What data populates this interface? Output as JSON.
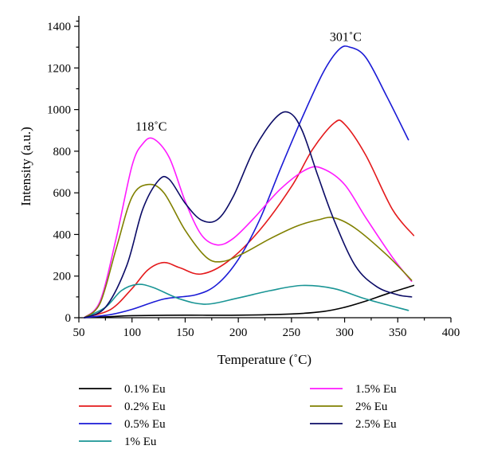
{
  "chart_data": {
    "type": "line",
    "xlabel": "Temperature (˚C)",
    "ylabel": "Intensity (a.u.)",
    "xlim": [
      50,
      400
    ],
    "ylim": [
      0,
      1450
    ],
    "xticks": [
      50,
      100,
      150,
      200,
      250,
      300,
      350,
      400
    ],
    "yticks": [
      0,
      200,
      400,
      600,
      800,
      1000,
      1200,
      1400
    ],
    "grid": false,
    "legend_position": "bottom",
    "annotations": [
      {
        "text": "118˚C",
        "x": 118,
        "y": 900
      },
      {
        "text": "301˚C",
        "x": 301,
        "y": 1330
      }
    ],
    "series": [
      {
        "name": "0.1% Eu",
        "color": "#000000",
        "x": [
          55,
          80,
          100,
          150,
          200,
          250,
          280,
          300,
          320,
          340,
          365
        ],
        "y": [
          0,
          5,
          10,
          12,
          12,
          18,
          30,
          50,
          80,
          115,
          155
        ]
      },
      {
        "name": "0.2% Eu",
        "color": "#e41a1c",
        "x": [
          55,
          80,
          100,
          115,
          130,
          145,
          165,
          190,
          220,
          250,
          270,
          290,
          300,
          320,
          345,
          365
        ],
        "y": [
          0,
          40,
          140,
          230,
          265,
          240,
          210,
          270,
          420,
          630,
          810,
          935,
          930,
          780,
          520,
          395
        ]
      },
      {
        "name": "0.5% Eu",
        "color": "#1a1ad6",
        "x": [
          55,
          80,
          100,
          130,
          160,
          180,
          200,
          220,
          240,
          260,
          280,
          295,
          305,
          320,
          340,
          360
        ],
        "y": [
          0,
          15,
          40,
          90,
          110,
          160,
          280,
          470,
          720,
          960,
          1180,
          1290,
          1300,
          1250,
          1060,
          855
        ]
      },
      {
        "name": "1% Eu",
        "color": "#1a9595",
        "x": [
          55,
          75,
          90,
          105,
          120,
          145,
          170,
          200,
          230,
          260,
          290,
          320,
          360
        ],
        "y": [
          0,
          50,
          130,
          160,
          145,
          90,
          65,
          95,
          130,
          155,
          140,
          90,
          35
        ]
      },
      {
        "name": "1.5% Eu",
        "color": "#ff1aff",
        "x": [
          55,
          70,
          85,
          100,
          110,
          120,
          135,
          150,
          165,
          180,
          195,
          215,
          240,
          265,
          280,
          300,
          320,
          345,
          363
        ],
        "y": [
          0,
          80,
          380,
          730,
          835,
          860,
          770,
          560,
          400,
          350,
          380,
          480,
          620,
          715,
          715,
          640,
          480,
          290,
          175
        ]
      },
      {
        "name": "2% Eu",
        "color": "#808000",
        "x": [
          55,
          70,
          85,
          100,
          115,
          130,
          150,
          170,
          185,
          205,
          230,
          255,
          275,
          290,
          310,
          340,
          363
        ],
        "y": [
          0,
          70,
          330,
          580,
          640,
          600,
          420,
          290,
          270,
          310,
          380,
          440,
          470,
          480,
          430,
          300,
          180
        ]
      },
      {
        "name": "2.5% Eu",
        "color": "#0b0b66",
        "x": [
          55,
          75,
          95,
          110,
          125,
          135,
          150,
          165,
          180,
          195,
          215,
          235,
          248,
          260,
          275,
          290,
          310,
          330,
          350,
          363
        ],
        "y": [
          0,
          50,
          250,
          520,
          660,
          665,
          550,
          470,
          470,
          580,
          810,
          960,
          985,
          900,
          680,
          470,
          250,
          150,
          110,
          100
        ]
      }
    ]
  }
}
